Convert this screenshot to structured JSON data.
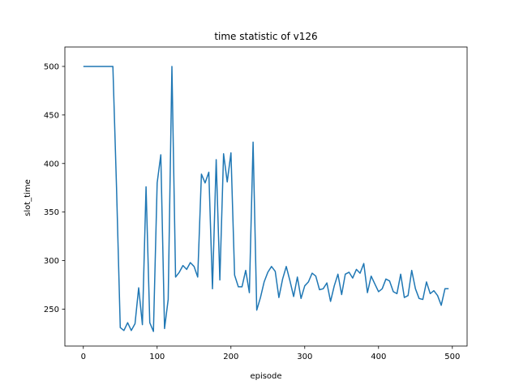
{
  "chart_data": {
    "type": "line",
    "title": "time statistic of v126",
    "xlabel": "episode",
    "ylabel": "slot_time",
    "xlim": [
      -25,
      520
    ],
    "ylim": [
      212,
      520
    ],
    "xticks": [
      0,
      100,
      200,
      300,
      400,
      500
    ],
    "yticks": [
      250,
      300,
      350,
      400,
      450,
      500
    ],
    "grid": false,
    "line_color": "#1f77b4",
    "series": [
      {
        "x": [
          0,
          5,
          10,
          15,
          20,
          25,
          30,
          35,
          40,
          45,
          50,
          55,
          60,
          65,
          70,
          75,
          80,
          85,
          90,
          95,
          100,
          105,
          110,
          115,
          120,
          125,
          130,
          135,
          140,
          145,
          150,
          155,
          160,
          165,
          170,
          175,
          180,
          185,
          190,
          195,
          200,
          205,
          210,
          215,
          220,
          225,
          230,
          235,
          240,
          245,
          250,
          255,
          260,
          265,
          270,
          275,
          280,
          285,
          290,
          295,
          300,
          305,
          310,
          315,
          320,
          325,
          330,
          335,
          340,
          345,
          350,
          355,
          360,
          365,
          370,
          375,
          380,
          385,
          390,
          395,
          400,
          405,
          410,
          415,
          420,
          425,
          430,
          435,
          440,
          445,
          450,
          455,
          460,
          465,
          470,
          475,
          480,
          485,
          490,
          495
        ],
        "values": [
          500,
          500,
          500,
          500,
          500,
          500,
          500,
          500,
          500,
          375,
          231,
          228,
          236,
          228,
          235,
          272,
          234,
          376,
          236,
          227,
          380,
          409,
          230,
          260,
          500,
          283,
          288,
          295,
          291,
          298,
          294,
          283,
          389,
          380,
          391,
          271,
          404,
          280,
          410,
          381,
          411,
          285,
          273,
          273,
          290,
          267,
          422,
          249,
          262,
          278,
          288,
          294,
          289,
          262,
          281,
          294,
          279,
          263,
          283,
          261,
          274,
          278,
          287,
          284,
          270,
          271,
          277,
          258,
          274,
          286,
          265,
          286,
          288,
          282,
          291,
          287,
          297,
          267,
          284,
          276,
          268,
          271,
          281,
          279,
          268,
          266,
          286,
          262,
          264,
          290,
          271,
          261,
          260,
          278,
          266,
          269,
          264,
          254,
          271,
          271
        ]
      }
    ]
  }
}
